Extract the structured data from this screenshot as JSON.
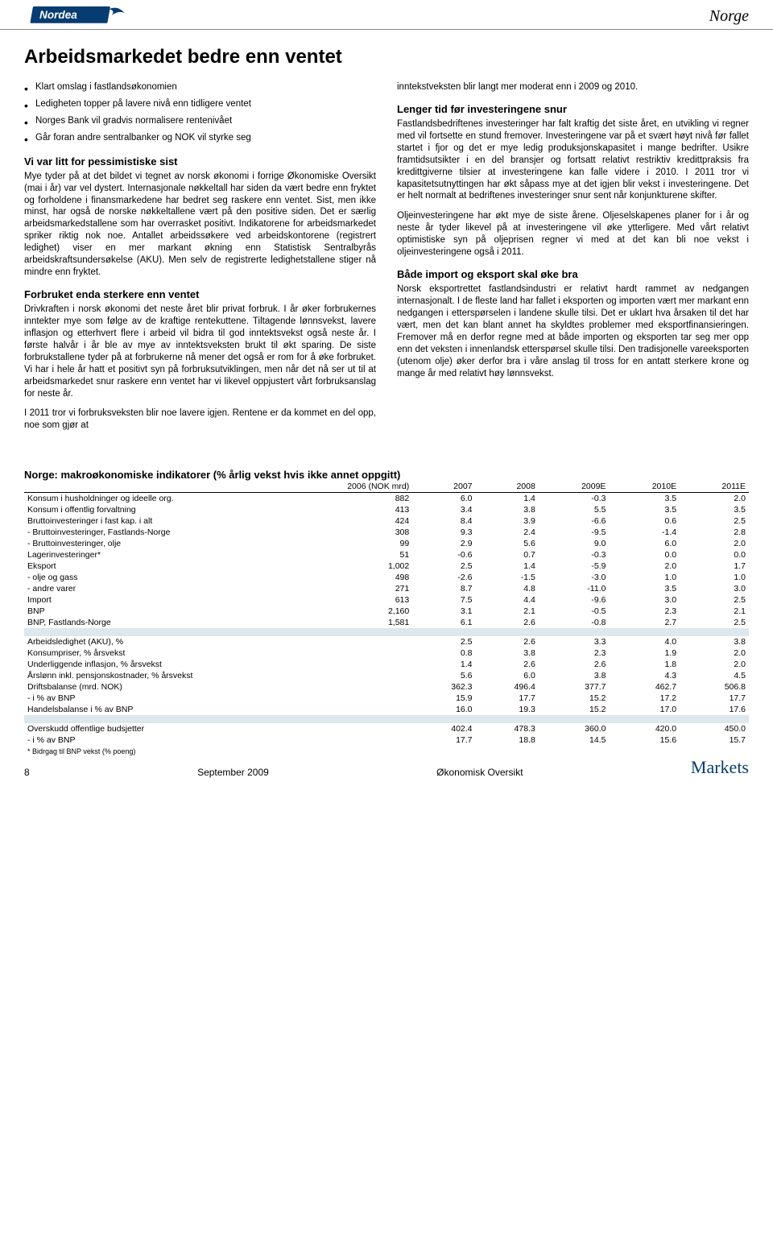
{
  "header": {
    "country": "Norge",
    "logo_color": "#063c71"
  },
  "title": "Arbeidsmarkedet bedre enn ventet",
  "bullets": [
    "Klart omslag i fastlandsøkonomien",
    "Ledigheten topper på lavere nivå enn tidligere ventet",
    "Norges Bank vil gradvis normalisere rentenivået",
    "Går foran andre sentralbanker og NOK vil styrke seg"
  ],
  "left": {
    "h_intro": "Vi var litt for pessimistiske sist",
    "p1": "Mye tyder på at det bildet vi tegnet av norsk økonomi i forrige Økonomiske Oversikt (mai i år) var vel dystert. Internasjonale nøkkeltall har siden da vært bedre enn fryktet og forholdene i finansmarkedene har bedret seg raskere enn ventet. Sist, men ikke minst, har også de norske nøkkeltallene vært på den positive siden. Det er særlig arbeidsmarkedstallene som har overrasket positivt. Indikatorene for arbeidsmarkedet spriker riktig nok noe. Antallet arbeidssøkere ved arbeidskontorene (registrert ledighet) viser en mer markant økning enn Statistisk Sentralbyrås arbeidskraftsundersøkelse (AKU). Men selv de registrerte ledighetstallene stiger nå mindre enn fryktet.",
    "h2": "Forbruket enda sterkere enn ventet",
    "p2": "Drivkraften i norsk økonomi det neste året blir privat forbruk. I år øker forbrukernes inntekter mye som følge av de kraftige rentekuttene. Tiltagende lønnsvekst, lavere inflasjon og etterhvert flere i arbeid vil bidra til god inntektsvekst også neste år. I første halvår i år ble av mye av inntektsveksten brukt til økt sparing. De siste forbrukstallene tyder på at forbrukerne nå mener det også er rom for å øke forbruket. Vi har i hele år hatt et positivt syn på forbruksutviklingen, men når det nå ser ut til at arbeidsmarkedet snur raskere enn ventet har vi likevel oppjustert vårt forbruksanslag for neste år.",
    "p3": "I 2011 tror vi forbruksveksten blir noe lavere igjen. Rentene er da kommet en del opp, noe som gjør at"
  },
  "right": {
    "p1": "inntekstveksten blir langt mer moderat enn i 2009 og 2010.",
    "h1": "Lenger tid før investeringene snur",
    "p2": "Fastlandsbedriftenes investeringer har falt kraftig det siste året, en utvikling vi regner med vil fortsette en stund fremover. Investeringene var på et svært høyt nivå før fallet startet i fjor og det er mye ledig produksjonskapasitet i mange bedrifter. Usikre framtidsutsikter i en del bransjer og fortsatt relativt restriktiv kredittpraksis fra kredittgiverne tilsier at investeringene kan falle videre i 2010. I 2011 tror vi kapasitetsutnyttingen har økt såpass mye at det igjen blir vekst i investeringene. Det er helt normalt at bedriftenes investeringer snur sent når konjunkturene skifter.",
    "p3": "Oljeinvesteringene har økt mye de siste årene. Oljeselskapenes planer for i år og neste år tyder likevel på at investeringene vil øke ytterligere. Med vårt relativt optimistiske syn på oljeprisen regner vi med at det kan bli noe vekst i oljeinvesteringene også i 2011.",
    "h2": "Både import og eksport skal øke bra",
    "p4": "Norsk eksportrettet fastlandsindustri er relativt hardt rammet av nedgangen internasjonalt. I de fleste land har fallet i eksporten og importen vært mer markant enn nedgangen i etterspørselen i landene skulle tilsi. Det er uklart hva årsaken til det har vært, men det kan blant annet ha skyldtes problemer med eksportfinansieringen. Fremover må en derfor regne med at både importen og eksporten tar seg mer opp enn det veksten i innenlandsk etterspørsel skulle tilsi. Den tradisjonelle vareeksporten (utenom olje) øker derfor bra i våre anslag til tross for en antatt sterkere krone og mange år med relativt høy lønnsvekst."
  },
  "table": {
    "title": "Norge: makroøkonomiske indikatorer (% årlig vekst hvis ikke annet oppgitt)",
    "columns": [
      "",
      "2006 (NOK mrd)",
      "2007",
      "2008",
      "2009E",
      "2010E",
      "2011E"
    ],
    "rows": [
      [
        "Konsum i husholdninger og ideelle org.",
        "882",
        "6.0",
        "1.4",
        "-0.3",
        "3.5",
        "2.0"
      ],
      [
        "Konsum i offentlig forvaltning",
        "413",
        "3.4",
        "3.8",
        "5.5",
        "3.5",
        "3.5"
      ],
      [
        "Bruttoinvesteringer i fast kap. i alt",
        "424",
        "8.4",
        "3.9",
        "-6.6",
        "0.6",
        "2.5"
      ],
      [
        " - Bruttoinvesteringer, Fastlands-Norge",
        "308",
        "9.3",
        "2.4",
        "-9.5",
        "-1.4",
        "2.8"
      ],
      [
        " - Bruttoinvesteringer, olje",
        "99",
        "2.9",
        "5.6",
        "9.0",
        "6.0",
        "2.0"
      ],
      [
        "Lagerinvesteringer*",
        "51",
        "-0.6",
        "0.7",
        "-0.3",
        "0.0",
        "0.0"
      ],
      [
        "Eksport",
        "1,002",
        "2.5",
        "1.4",
        "-5.9",
        "2.0",
        "1.7"
      ],
      [
        " - olje og gass",
        "498",
        "-2.6",
        "-1.5",
        "-3.0",
        "1.0",
        "1.0"
      ],
      [
        " - andre varer",
        "271",
        "8.7",
        "4.8",
        "-11.0",
        "3.5",
        "3.0"
      ],
      [
        "Import",
        "613",
        "7.5",
        "4.4",
        "-9.6",
        "3.0",
        "2.5"
      ],
      [
        "BNP",
        "2,160",
        "3.1",
        "2.1",
        "-0.5",
        "2.3",
        "2.1"
      ],
      [
        "BNP, Fastlands-Norge",
        "1,581",
        "6.1",
        "2.6",
        "-0.8",
        "2.7",
        "2.5"
      ]
    ],
    "rows2": [
      [
        "Arbeidsledighet (AKU), %",
        "",
        "2.5",
        "2.6",
        "3.3",
        "4.0",
        "3.8"
      ],
      [
        "Konsumpriser, % årsvekst",
        "",
        "0.8",
        "3.8",
        "2.3",
        "1.9",
        "2.0"
      ],
      [
        "Underliggende inflasjon, % årsvekst",
        "",
        "1.4",
        "2.6",
        "2.6",
        "1.8",
        "2.0"
      ],
      [
        "Årslønn inkl. pensjonskostnader, % årsvekst",
        "",
        "5.6",
        "6.0",
        "3.8",
        "4.3",
        "4.5"
      ],
      [
        "Driftsbalanse (mrd. NOK)",
        "",
        "362.3",
        "496.4",
        "377.7",
        "462.7",
        "506.8"
      ],
      [
        "- i % av BNP",
        "",
        "15.9",
        "17.7",
        "15.2",
        "17.2",
        "17.7"
      ],
      [
        "Handelsbalanse i % av BNP",
        "",
        "16.0",
        "19.3",
        "15.2",
        "17.0",
        "17.6"
      ]
    ],
    "rows3": [
      [
        "Overskudd offentlige budsjetter",
        "",
        "402.4",
        "478.3",
        "360.0",
        "420.0",
        "450.0"
      ],
      [
        "- i % av BNP",
        "",
        "17.7",
        "18.8",
        "14.5",
        "15.6",
        "15.7"
      ]
    ],
    "note": "* Bidrgag til BNP vekst (% poeng)"
  },
  "footer": {
    "page": "8",
    "date": "September 2009",
    "doc": "Økonomisk Oversikt",
    "brand": "Markets"
  }
}
